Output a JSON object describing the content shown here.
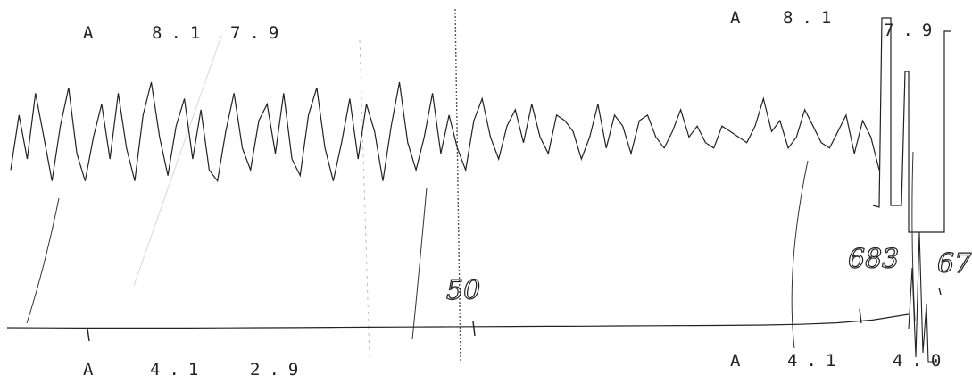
{
  "top_labels": {
    "left": {
      "channel": "A",
      "value1": "8.1",
      "value2": "7.9"
    },
    "right": {
      "channel": "A",
      "value1": "8.1",
      "value2": "7.9"
    }
  },
  "bottom_labels": {
    "left": {
      "channel": "A",
      "value1": "4.1",
      "value2": "2.9"
    },
    "right": {
      "channel": "A",
      "value1": "4.1",
      "value2": "4.0"
    }
  },
  "annotations": {
    "mark_center": "50",
    "mark_right": "683",
    "mark_far_right": "67"
  },
  "chart_data": {
    "type": "line",
    "title": "",
    "series": [
      {
        "name": "",
        "values": [
          0.2,
          0.7,
          0.3,
          0.9,
          0.5,
          0.1,
          0.6,
          0.95,
          0.35,
          0.1,
          0.5,
          0.8,
          0.3,
          0.9,
          0.4,
          0.1,
          0.7,
          1.0,
          0.5,
          0.15,
          0.6,
          0.85,
          0.3,
          0.75,
          0.2,
          0.1,
          0.55,
          0.9,
          0.4,
          0.2,
          0.65,
          0.8,
          0.35,
          0.9,
          0.3,
          0.15,
          0.7,
          0.95,
          0.4,
          0.1,
          0.45,
          0.85,
          0.3,
          0.8,
          0.55,
          0.1,
          0.6,
          1.0,
          0.45,
          0.2,
          0.5,
          0.9,
          0.35,
          0.7,
          0.4,
          0.2,
          0.65,
          0.85,
          0.5,
          0.3,
          0.6,
          0.75,
          0.45,
          0.8,
          0.5,
          0.35,
          0.7,
          0.65,
          0.55,
          0.3,
          0.5,
          0.8,
          0.4,
          0.7,
          0.6,
          0.35,
          0.65,
          0.7,
          0.5,
          0.4,
          0.55,
          0.75,
          0.5,
          0.6,
          0.45,
          0.4,
          0.6,
          0.55,
          0.5,
          0.45,
          0.6,
          0.85,
          0.55,
          0.65,
          0.4,
          0.5,
          0.75,
          0.6,
          0.45,
          0.4,
          0.55,
          0.7,
          0.35,
          0.65,
          0.5,
          0.2
        ]
      },
      {
        "name": "",
        "values": [
          0.12,
          0.1,
          0.08,
          0.07,
          0.07,
          0.08,
          0.1,
          0.12,
          0.14,
          0.17,
          0.2,
          0.22,
          0.25,
          0.27,
          0.3,
          0.32,
          0.34,
          0.37,
          0.4,
          0.42,
          0.45,
          0.5,
          0.6,
          0.8,
          1.2,
          2.0
        ]
      }
    ]
  }
}
